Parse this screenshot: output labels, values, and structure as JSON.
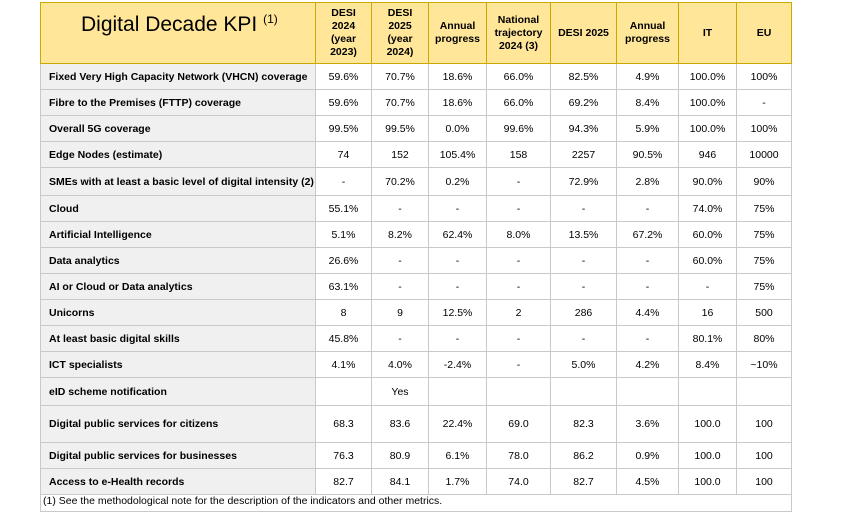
{
  "header": {
    "title": "Digital Decade KPI",
    "title_note": "(1)",
    "columns": [
      [
        "DESI",
        "2024",
        "(year",
        "2023)"
      ],
      [
        "DESI",
        "2025",
        "(year",
        "2024)"
      ],
      [
        "Annual",
        "progress"
      ],
      [
        "National",
        "trajectory",
        "2024 (3)"
      ],
      [
        "DESI 2025"
      ],
      [
        "Annual",
        "progress"
      ],
      [
        "IT"
      ],
      [
        "EU"
      ]
    ]
  },
  "rows": [
    {
      "label": "Fixed Very High Capacity Network (VHCN) coverage",
      "values": [
        "59.6%",
        "70.7%",
        "18.6%",
        "66.0%",
        "82.5%",
        "4.9%",
        "100.0%",
        "100%"
      ]
    },
    {
      "label": "Fibre to the Premises (FTTP) coverage",
      "values": [
        "59.6%",
        "70.7%",
        "18.6%",
        "66.0%",
        "69.2%",
        "8.4%",
        "100.0%",
        "-"
      ]
    },
    {
      "label": "Overall 5G coverage",
      "values": [
        "99.5%",
        "99.5%",
        "0.0%",
        "99.6%",
        "94.3%",
        "5.9%",
        "100.0%",
        "100%"
      ]
    },
    {
      "label": "Edge Nodes (estimate)",
      "values": [
        "74",
        "152",
        "105.4%",
        "158",
        "2257",
        "90.5%",
        "946",
        "10000"
      ]
    },
    {
      "label": "SMEs with at least a basic level of digital intensity (2)",
      "values": [
        "-",
        "70.2%",
        "0.2%",
        "-",
        "72.9%",
        "2.8%",
        "90.0%",
        "90%"
      ]
    },
    {
      "label": "Cloud",
      "values": [
        "55.1%",
        "-",
        "-",
        "-",
        "-",
        "-",
        "74.0%",
        "75%"
      ]
    },
    {
      "label": "Artificial Intelligence",
      "values": [
        "5.1%",
        "8.2%",
        "62.4%",
        "8.0%",
        "13.5%",
        "67.2%",
        "60.0%",
        "75%"
      ]
    },
    {
      "label": "Data analytics",
      "values": [
        "26.6%",
        "-",
        "-",
        "-",
        "-",
        "-",
        "60.0%",
        "75%"
      ]
    },
    {
      "label": "AI or Cloud or Data analytics",
      "values": [
        "63.1%",
        "-",
        "-",
        "-",
        "-",
        "-",
        "-",
        "75%"
      ]
    },
    {
      "label": "Unicorns",
      "values": [
        "8",
        "9",
        "12.5%",
        "2",
        "286",
        "4.4%",
        "16",
        "500"
      ]
    },
    {
      "label": "At least basic digital skills",
      "values": [
        "45.8%",
        "-",
        "-",
        "-",
        "-",
        "-",
        "80.1%",
        "80%"
      ]
    },
    {
      "label": "ICT specialists",
      "values": [
        "4.1%",
        "4.0%",
        "-2.4%",
        "-",
        "5.0%",
        "4.2%",
        "8.4%",
        "~10%"
      ]
    },
    {
      "label": "eID scheme notification",
      "values": [
        "",
        "Yes",
        "",
        "",
        "",
        "",
        "",
        ""
      ]
    },
    {
      "label": "Digital public services for citizens",
      "values": [
        "68.3",
        "83.6",
        "22.4%",
        "69.0",
        "82.3",
        "3.6%",
        "100.0",
        "100"
      ]
    },
    {
      "label": "Digital public services for businesses",
      "values": [
        "76.3",
        "80.9",
        "6.1%",
        "78.0",
        "86.2",
        "0.9%",
        "100.0",
        "100"
      ]
    },
    {
      "label": "Access to e-Health records",
      "values": [
        "82.7",
        "84.1",
        "1.7%",
        "74.0",
        "82.7",
        "4.5%",
        "100.0",
        "100"
      ]
    }
  ],
  "footnote": "(1) See the methodological note for the description of the indicators and other metrics."
}
